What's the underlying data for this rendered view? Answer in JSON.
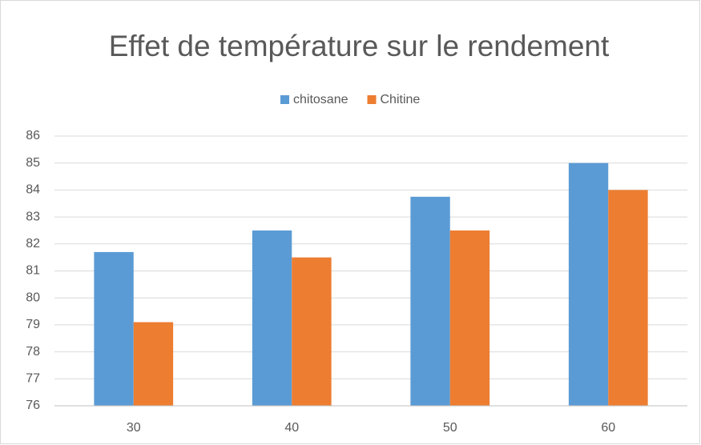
{
  "chart_data": {
    "type": "bar",
    "title": "Effet de température sur le rendement",
    "categories": [
      "30",
      "40",
      "50",
      "60"
    ],
    "series": [
      {
        "name": "chitosane",
        "color": "#5b9bd5",
        "values": [
          81.7,
          82.5,
          83.75,
          85
        ]
      },
      {
        "name": "Chitine",
        "color": "#ed7d31",
        "values": [
          79.1,
          81.5,
          82.5,
          84
        ]
      }
    ],
    "ylim": [
      76,
      86
    ],
    "yticks": [
      76,
      77,
      78,
      79,
      80,
      81,
      82,
      83,
      84,
      85,
      86
    ],
    "grid": true,
    "legend": "top"
  }
}
